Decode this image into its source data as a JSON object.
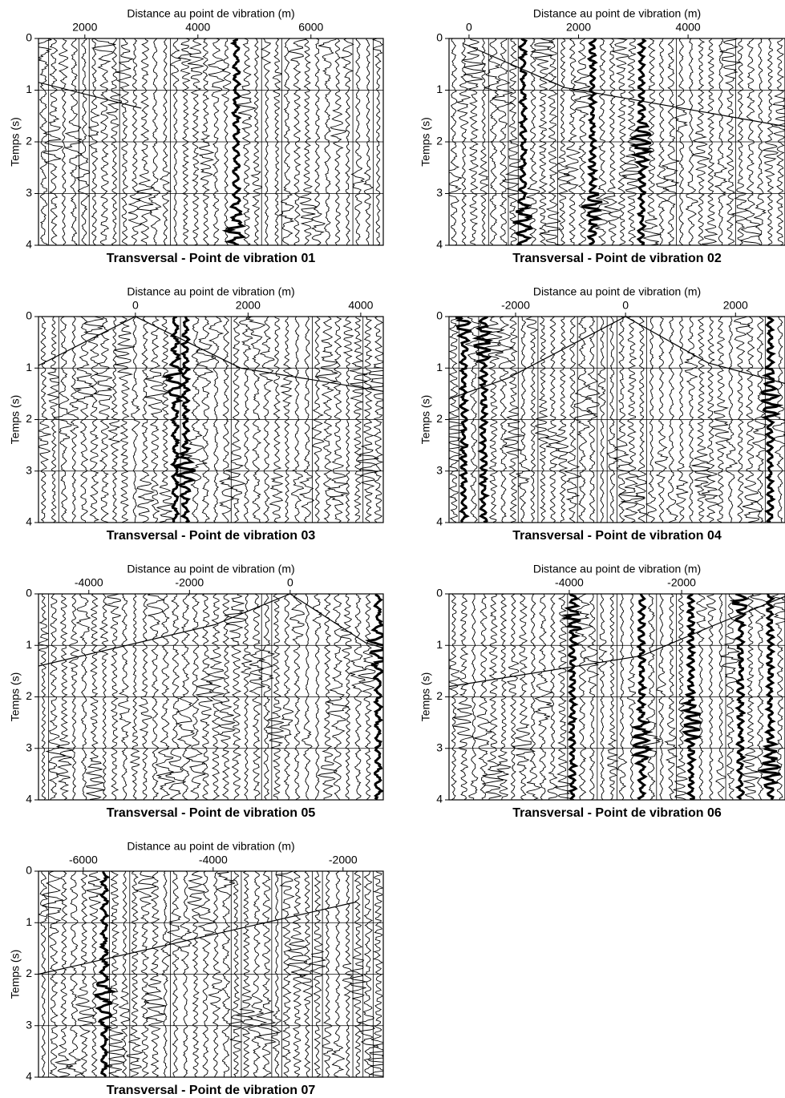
{
  "chart_data": [
    {
      "type": "seismic",
      "title": "Transversal - Point de vibration 01",
      "xlabel": "Distance au point de vibration (m)",
      "ylabel": "Temps (s)",
      "xlim": [
        1180,
        7280
      ],
      "ylim": [
        0,
        4
      ],
      "xticks": [
        2000,
        4000,
        6000
      ],
      "yticks": [
        0,
        1,
        2,
        3,
        4
      ],
      "x": [
        1180,
        3000
      ],
      "values": [
        0.85,
        1.35
      ]
    },
    {
      "type": "seismic",
      "title": "Transversal - Point de vibration 02",
      "xlabel": "Distance au point de vibration (m)",
      "ylabel": "Temps (s)",
      "xlim": [
        -365,
        5770
      ],
      "ylim": [
        0,
        4
      ],
      "xticks": [
        0,
        2000,
        4000
      ],
      "yticks": [
        0,
        1,
        2,
        3,
        4
      ],
      "x": [
        -100,
        1750,
        5770
      ],
      "values": [
        0.1,
        0.95,
        1.7
      ]
    },
    {
      "type": "seismic",
      "title": "Transversal - Point de vibration 03",
      "xlabel": "Distance au point de vibration (m)",
      "ylabel": "Temps (s)",
      "xlim": [
        -1720,
        4400
      ],
      "ylim": [
        0,
        4
      ],
      "xticks": [
        0,
        2000,
        4000
      ],
      "yticks": [
        0,
        1,
        2,
        3,
        4
      ],
      "x": [
        -1720,
        0,
        1870,
        4400
      ],
      "values": [
        0.95,
        0,
        1.0,
        1.45
      ]
    },
    {
      "type": "seismic",
      "title": "Transversal - Point de vibration 04",
      "xlabel": "Distance au point de vibration (m)",
      "ylabel": "Temps (s)",
      "xlim": [
        -3210,
        2900
      ],
      "ylim": [
        0,
        4
      ],
      "xticks": [
        -2000,
        0,
        2000
      ],
      "yticks": [
        0,
        1,
        2,
        3,
        4
      ],
      "x": [
        -3210,
        -2150,
        0,
        1500,
        2900
      ],
      "values": [
        1.6,
        1.2,
        0,
        0.9,
        1.3
      ]
    },
    {
      "type": "seismic",
      "title": "Transversal - Point de vibration 05",
      "xlabel": "Distance au point de vibration (m)",
      "ylabel": "Temps (s)",
      "xlim": [
        -5000,
        1850
      ],
      "ylim": [
        0,
        4
      ],
      "xticks": [
        -4000,
        -2000,
        0
      ],
      "yticks": [
        0,
        1,
        2,
        3,
        4
      ],
      "x": [
        -5000,
        -1500,
        0,
        1500,
        1850
      ],
      "values": [
        1.4,
        0.6,
        0,
        0.95,
        1.05
      ]
    },
    {
      "type": "seismic",
      "title": "Transversal - Point de vibration 06",
      "xlabel": "Distance au point de vibration (m)",
      "ylabel": "Temps (s)",
      "xlim": [
        -6140,
        -160
      ],
      "ylim": [
        0,
        4
      ],
      "xticks": [
        -4000,
        -2000
      ],
      "yticks": [
        0,
        1,
        2,
        3,
        4
      ],
      "x": [
        -6140,
        -2700,
        -1400,
        -160
      ],
      "values": [
        1.8,
        1.2,
        0.6,
        0.05
      ]
    },
    {
      "type": "seismic",
      "title": "Transversal - Point de vibration 07",
      "xlabel": "Distance au point de vibration (m)",
      "ylabel": "Temps (s)",
      "xlim": [
        -6690,
        -1380
      ],
      "ylim": [
        0,
        4
      ],
      "xticks": [
        -6000,
        -4000,
        -2000
      ],
      "yticks": [
        0,
        1,
        2,
        3,
        4
      ],
      "x": [
        -6690,
        -1800
      ],
      "values": [
        2.0,
        0.6
      ]
    }
  ]
}
